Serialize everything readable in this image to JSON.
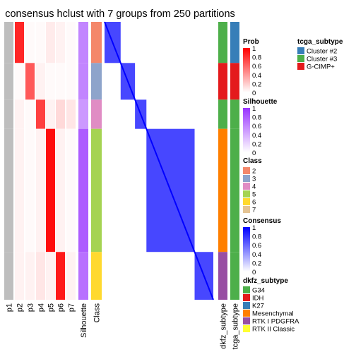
{
  "chart_data": {
    "type": "heatmap",
    "title": "consensus hclust with 7 groups from 250 partitions",
    "row_groups": [
      {
        "class": "2",
        "fraction": 0.148
      },
      {
        "class": "3",
        "fraction": 0.132
      },
      {
        "class": "4",
        "fraction": 0.105
      },
      {
        "class": "5",
        "fraction": 0.443
      },
      {
        "class": "6",
        "fraction": 0.172
      }
    ],
    "column_labels": [
      "p1",
      "p2",
      "p3",
      "p4",
      "p5",
      "p6",
      "p7",
      "Silhouette",
      "Class",
      "dkfz_subtype",
      "tcga_subtype"
    ],
    "membership_prob": [
      {
        "column": "p1",
        "values": [
          0,
          0,
          0,
          0,
          0
        ]
      },
      {
        "column": "p2",
        "values": [
          0.85,
          0.02,
          0.05,
          0.05,
          0.05
        ]
      },
      {
        "column": "p3",
        "values": [
          0.02,
          0.65,
          0.02,
          0.02,
          0.05
        ]
      },
      {
        "column": "p4",
        "values": [
          0.02,
          0.05,
          0.75,
          0.05,
          0.1
        ]
      },
      {
        "column": "p5",
        "values": [
          0.08,
          0.02,
          0.05,
          0.95,
          0.05
        ]
      },
      {
        "column": "p6",
        "values": [
          0.05,
          0.02,
          0.15,
          0.05,
          0.9
        ]
      },
      {
        "column": "p7",
        "values": [
          0.02,
          0.02,
          0.1,
          0.02,
          0.05
        ]
      }
    ],
    "silhouette": [
      0.6,
      0.6,
      0.5,
      0.8,
      0.7
    ],
    "class_colors": {
      "2": "#F4876A",
      "3": "#8EA4CB",
      "4": "#E08CC4",
      "5": "#A5D352",
      "6": "#FFD92F",
      "7": "#E5C494"
    },
    "tcga_subtype_by_group": [
      "Cluster #2",
      "G-CIMP+",
      "Cluster #3",
      "Cluster #3",
      "Cluster #3"
    ],
    "legends": {
      "prob": {
        "title": "Prob",
        "ticks": [
          "1",
          "0.8",
          "0.6",
          "0.4",
          "0.2",
          "0"
        ]
      },
      "silhouette": {
        "title": "Silhouette",
        "ticks": [
          "1",
          "0.8",
          "0.6",
          "0.4",
          "0.2",
          "0"
        ]
      },
      "class": {
        "title": "Class",
        "items": [
          "2",
          "3",
          "4",
          "5",
          "6",
          "7"
        ]
      },
      "consensus": {
        "title": "Consensus",
        "ticks": [
          "1",
          "0.8",
          "0.6",
          "0.4",
          "0.2",
          "0"
        ]
      },
      "dkfz_subtype": {
        "title": "dkfz_subtype",
        "items": [
          {
            "label": "G34",
            "color": "#4DAF4A"
          },
          {
            "label": "IDH",
            "color": "#E41A1C"
          },
          {
            "label": "K27",
            "color": "#377EB8"
          },
          {
            "label": "Mesenchymal",
            "color": "#FF7F00"
          },
          {
            "label": "RTK I PDGFRA",
            "color": "#984EA3"
          },
          {
            "label": "RTK II Classic",
            "color": "#FFFF33"
          }
        ]
      },
      "tcga_subtype": {
        "title": "tcga_subtype",
        "items": [
          {
            "label": "Cluster #2",
            "color": "#377EB8"
          },
          {
            "label": "Cluster #3",
            "color": "#4DAF4A"
          },
          {
            "label": "G-CIMP+",
            "color": "#E41A1C"
          }
        ]
      }
    },
    "colors": {
      "prob_high": "#FF0000",
      "consensus_high": "#0000FF",
      "silhouette_high": "#9933FF",
      "p1_fill": "#BEBEBE"
    }
  }
}
